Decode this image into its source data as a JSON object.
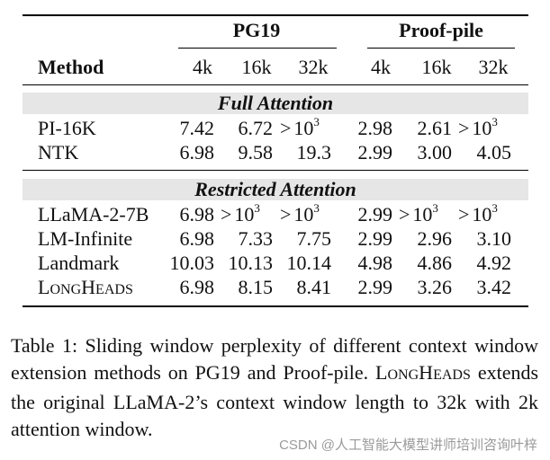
{
  "table": {
    "group_headers": [
      "PG19",
      "Proof-pile"
    ],
    "method_header": "Method",
    "sub_headers": [
      "4k",
      "16k",
      "32k",
      "4k",
      "16k",
      "32k"
    ],
    "sections": [
      {
        "title": "Full Attention",
        "rows": [
          {
            "method": "PI-16K",
            "pg19": [
              "7.42",
              "6.72",
              ">10^3"
            ],
            "proofpile": [
              "2.98",
              "2.61",
              ">10^3"
            ]
          },
          {
            "method": "NTK",
            "pg19": [
              "6.98",
              "9.58",
              "19.3"
            ],
            "proofpile": [
              "2.99",
              "3.00",
              "4.05"
            ]
          }
        ]
      },
      {
        "title": "Restricted Attention",
        "rows": [
          {
            "method": "LLaMA-2-7B",
            "pg19": [
              "6.98",
              ">10^3",
              ">10^3"
            ],
            "proofpile": [
              "2.99",
              ">10^3",
              ">10^3"
            ]
          },
          {
            "method": "LM-Infinite",
            "pg19": [
              "6.98",
              "7.33",
              "7.75"
            ],
            "proofpile": [
              "2.99",
              "2.96",
              "3.10"
            ]
          },
          {
            "method": "Landmark",
            "pg19": [
              "10.03",
              "10.13",
              "10.14"
            ],
            "proofpile": [
              "4.98",
              "4.86",
              "4.92"
            ]
          },
          {
            "method": "LongHeads",
            "pg19": [
              "6.98",
              "8.15",
              "8.41"
            ],
            "proofpile": [
              "2.99",
              "3.26",
              "3.42"
            ]
          }
        ]
      }
    ]
  },
  "caption": {
    "label": "Table 1:",
    "text_1": "Sliding window perplexity of different context window extension methods on PG19 and Proof-pile.",
    "method_name": "LongHeads",
    "text_2": "extends the original LLaMA-2’s context window length to 32k with 2k attention window."
  },
  "watermark": "CSDN @人工智能大模型讲师培训咨询叶梓"
}
